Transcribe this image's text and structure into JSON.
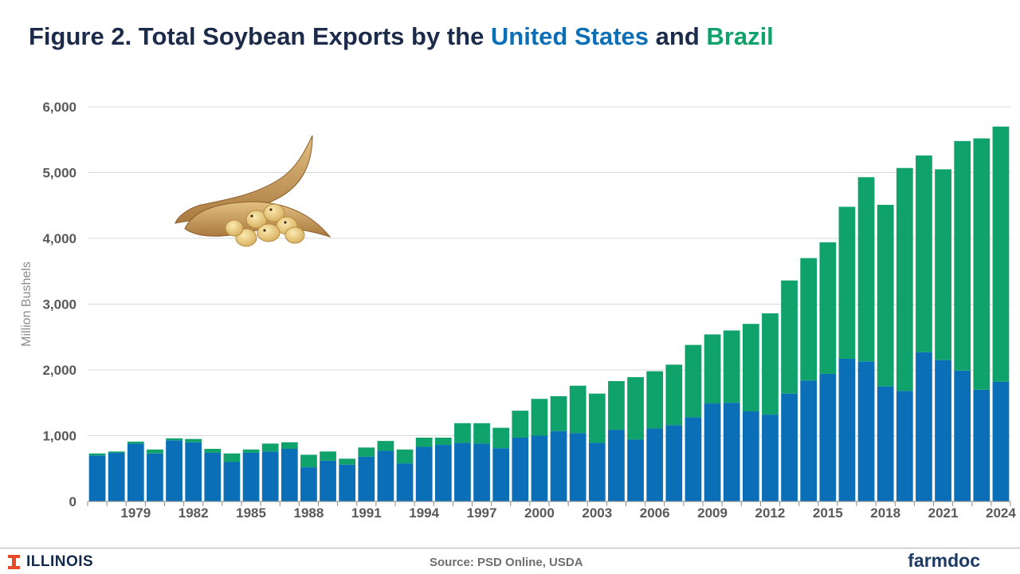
{
  "title": {
    "prefix": "Figure 2. Total Soybean Exports by the ",
    "us": "United States",
    "middle": " and ",
    "br": "Brazil"
  },
  "footer": {
    "source": "Source: PSD Online, USDA",
    "left_logo": "ILLINOIS",
    "right_logo": "farmdoc"
  },
  "colors": {
    "us": "#0b6fb8",
    "brazil": "#0fa36b",
    "title": "#1c2b4a",
    "gridline": "#d9d9d9",
    "axis_text": "#595959"
  },
  "chart_data": {
    "type": "bar",
    "stacked": true,
    "ylabel": "Million Bushels",
    "xlabel": "",
    "ylim": [
      0,
      6000
    ],
    "yticks": [
      0,
      1000,
      2000,
      3000,
      4000,
      5000,
      6000
    ],
    "ytick_labels": [
      "0",
      "1,000",
      "2,000",
      "3,000",
      "4,000",
      "5,000",
      "6,000"
    ],
    "x_tick_labels": [
      "1979",
      "1982",
      "1985",
      "1988",
      "1991",
      "1994",
      "1997",
      "2000",
      "2003",
      "2006",
      "2009",
      "2012",
      "2015",
      "2018",
      "2021",
      "2024"
    ],
    "grid": true,
    "legend": "none",
    "categories": [
      "1977",
      "1978",
      "1979",
      "1980",
      "1981",
      "1982",
      "1983",
      "1984",
      "1985",
      "1986",
      "1987",
      "1988",
      "1989",
      "1990",
      "1991",
      "1992",
      "1993",
      "1994",
      "1995",
      "1996",
      "1997",
      "1998",
      "1999",
      "2000",
      "2001",
      "2002",
      "2003",
      "2004",
      "2005",
      "2006",
      "2007",
      "2008",
      "2009",
      "2010",
      "2011",
      "2012",
      "2013",
      "2014",
      "2015",
      "2016",
      "2017",
      "2018",
      "2019",
      "2020",
      "2021",
      "2022",
      "2023",
      "2024"
    ],
    "series": [
      {
        "name": "United States",
        "values": [
          700,
          740,
          880,
          730,
          930,
          900,
          740,
          600,
          740,
          760,
          800,
          520,
          620,
          560,
          680,
          770,
          580,
          830,
          860,
          890,
          880,
          810,
          970,
          1000,
          1070,
          1040,
          890,
          1090,
          940,
          1110,
          1160,
          1280,
          1490,
          1500,
          1370,
          1320,
          1640,
          1840,
          1940,
          2170,
          2130,
          1750,
          1680,
          2270,
          2150,
          1990,
          1700,
          1820
        ]
      },
      {
        "name": "Brazil",
        "values": [
          30,
          20,
          30,
          60,
          30,
          50,
          60,
          130,
          50,
          120,
          100,
          190,
          140,
          90,
          140,
          150,
          210,
          140,
          110,
          300,
          310,
          310,
          410,
          560,
          530,
          720,
          750,
          740,
          950,
          870,
          920,
          1100,
          1050,
          1100,
          1330,
          1540,
          1720,
          1860,
          2000,
          2310,
          2800,
          2760,
          3390,
          2990,
          2900,
          3490,
          3820,
          3880
        ]
      }
    ]
  }
}
